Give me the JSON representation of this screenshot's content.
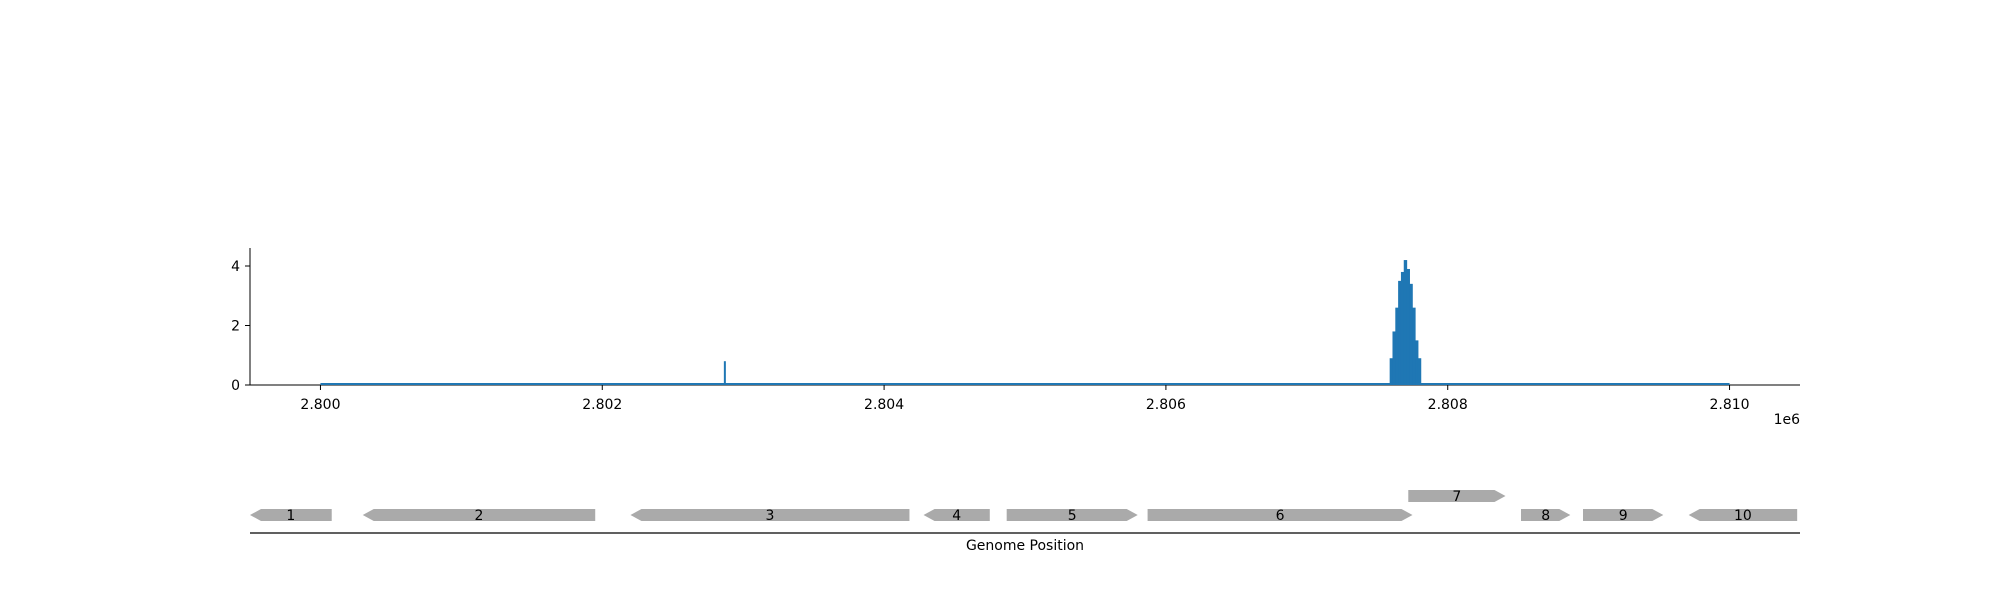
{
  "chart_data": {
    "type": "bar",
    "coverage": {
      "color": "#1f77b4",
      "ylim": [
        0,
        4.6
      ],
      "yticks": [
        0,
        2,
        4
      ],
      "ytick_labels": [
        "0",
        "2",
        "4"
      ],
      "xlim": [
        2799500,
        2810500
      ],
      "xticks": [
        2800000,
        2802000,
        2804000,
        2806000,
        2808000,
        2810000
      ],
      "xtick_labels": [
        "2.800",
        "2.802",
        "2.804",
        "2.806",
        "2.808",
        "2.810"
      ],
      "x_offset_label": "1e6",
      "baseline_range": [
        2800000,
        2810000
      ],
      "x": [
        2802870,
        2807600,
        2807620,
        2807640,
        2807660,
        2807680,
        2807700,
        2807720,
        2807740,
        2807760,
        2807780,
        2807800
      ],
      "values": [
        0.8,
        0.9,
        1.8,
        2.6,
        3.5,
        3.8,
        4.2,
        3.9,
        3.4,
        2.6,
        1.5,
        0.9
      ]
    },
    "genes": {
      "color": "#aaaaaa",
      "xlim": [
        2799500,
        2810500
      ],
      "items": [
        {
          "label": "1",
          "start": 2799500,
          "end": 2800080,
          "strand": "-",
          "row": 0
        },
        {
          "label": "2",
          "start": 2800300,
          "end": 2801950,
          "strand": "-",
          "row": 0
        },
        {
          "label": "3",
          "start": 2802200,
          "end": 2804180,
          "strand": "-",
          "row": 0
        },
        {
          "label": "4",
          "start": 2804280,
          "end": 2804750,
          "strand": "-",
          "row": 0
        },
        {
          "label": "5",
          "start": 2804870,
          "end": 2805800,
          "strand": "+",
          "row": 0
        },
        {
          "label": "6",
          "start": 2805870,
          "end": 2807750,
          "strand": "+",
          "row": 0
        },
        {
          "label": "7",
          "start": 2807720,
          "end": 2808410,
          "strand": "+",
          "row": 1
        },
        {
          "label": "8",
          "start": 2808520,
          "end": 2808870,
          "strand": "+",
          "row": 0
        },
        {
          "label": "9",
          "start": 2808960,
          "end": 2809530,
          "strand": "+",
          "row": 0
        },
        {
          "label": "10",
          "start": 2809710,
          "end": 2810480,
          "strand": "-",
          "row": 0
        }
      ]
    },
    "xlabel": "Genome Position"
  }
}
